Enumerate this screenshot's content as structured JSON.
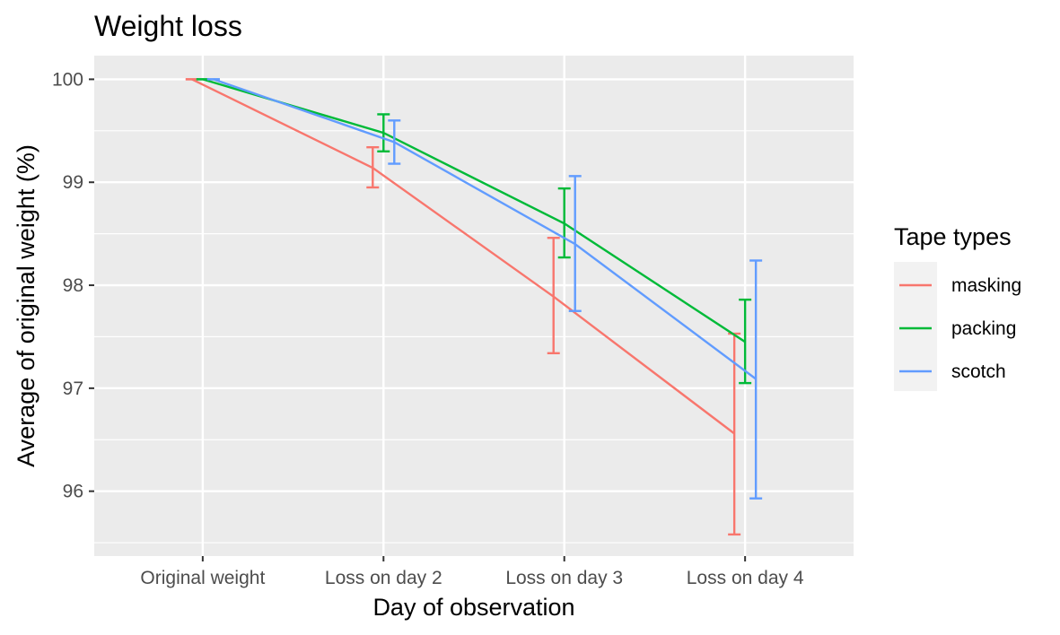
{
  "chart_data": {
    "type": "line",
    "title": "Weight loss",
    "xlabel": "Day of observation",
    "ylabel": "Average of original weight (%)",
    "categories": [
      "Original weight",
      "Loss on day 2",
      "Loss on day 3",
      "Loss on day 4"
    ],
    "ylim": [
      95.37,
      100.23
    ],
    "yticks": [
      96,
      97,
      98,
      99,
      100
    ],
    "grid": true,
    "legend": {
      "title": "Tape types",
      "position": "right"
    },
    "series": [
      {
        "name": "masking",
        "color": "#F8766D",
        "values": [
          100.0,
          99.14,
          97.89,
          96.56
        ],
        "error_low": [
          100.0,
          98.95,
          97.34,
          95.58
        ],
        "error_high": [
          100.0,
          99.34,
          98.46,
          97.53
        ]
      },
      {
        "name": "packing",
        "color": "#00BA38",
        "values": [
          100.0,
          99.48,
          98.6,
          97.45
        ],
        "error_low": [
          100.0,
          99.3,
          98.27,
          97.05
        ],
        "error_high": [
          100.0,
          99.66,
          98.94,
          97.86
        ]
      },
      {
        "name": "scotch",
        "color": "#619CFF",
        "values": [
          100.0,
          99.39,
          98.4,
          97.09
        ],
        "error_low": [
          100.0,
          99.18,
          97.75,
          95.93
        ],
        "error_high": [
          100.0,
          99.6,
          99.06,
          98.24
        ]
      }
    ]
  }
}
